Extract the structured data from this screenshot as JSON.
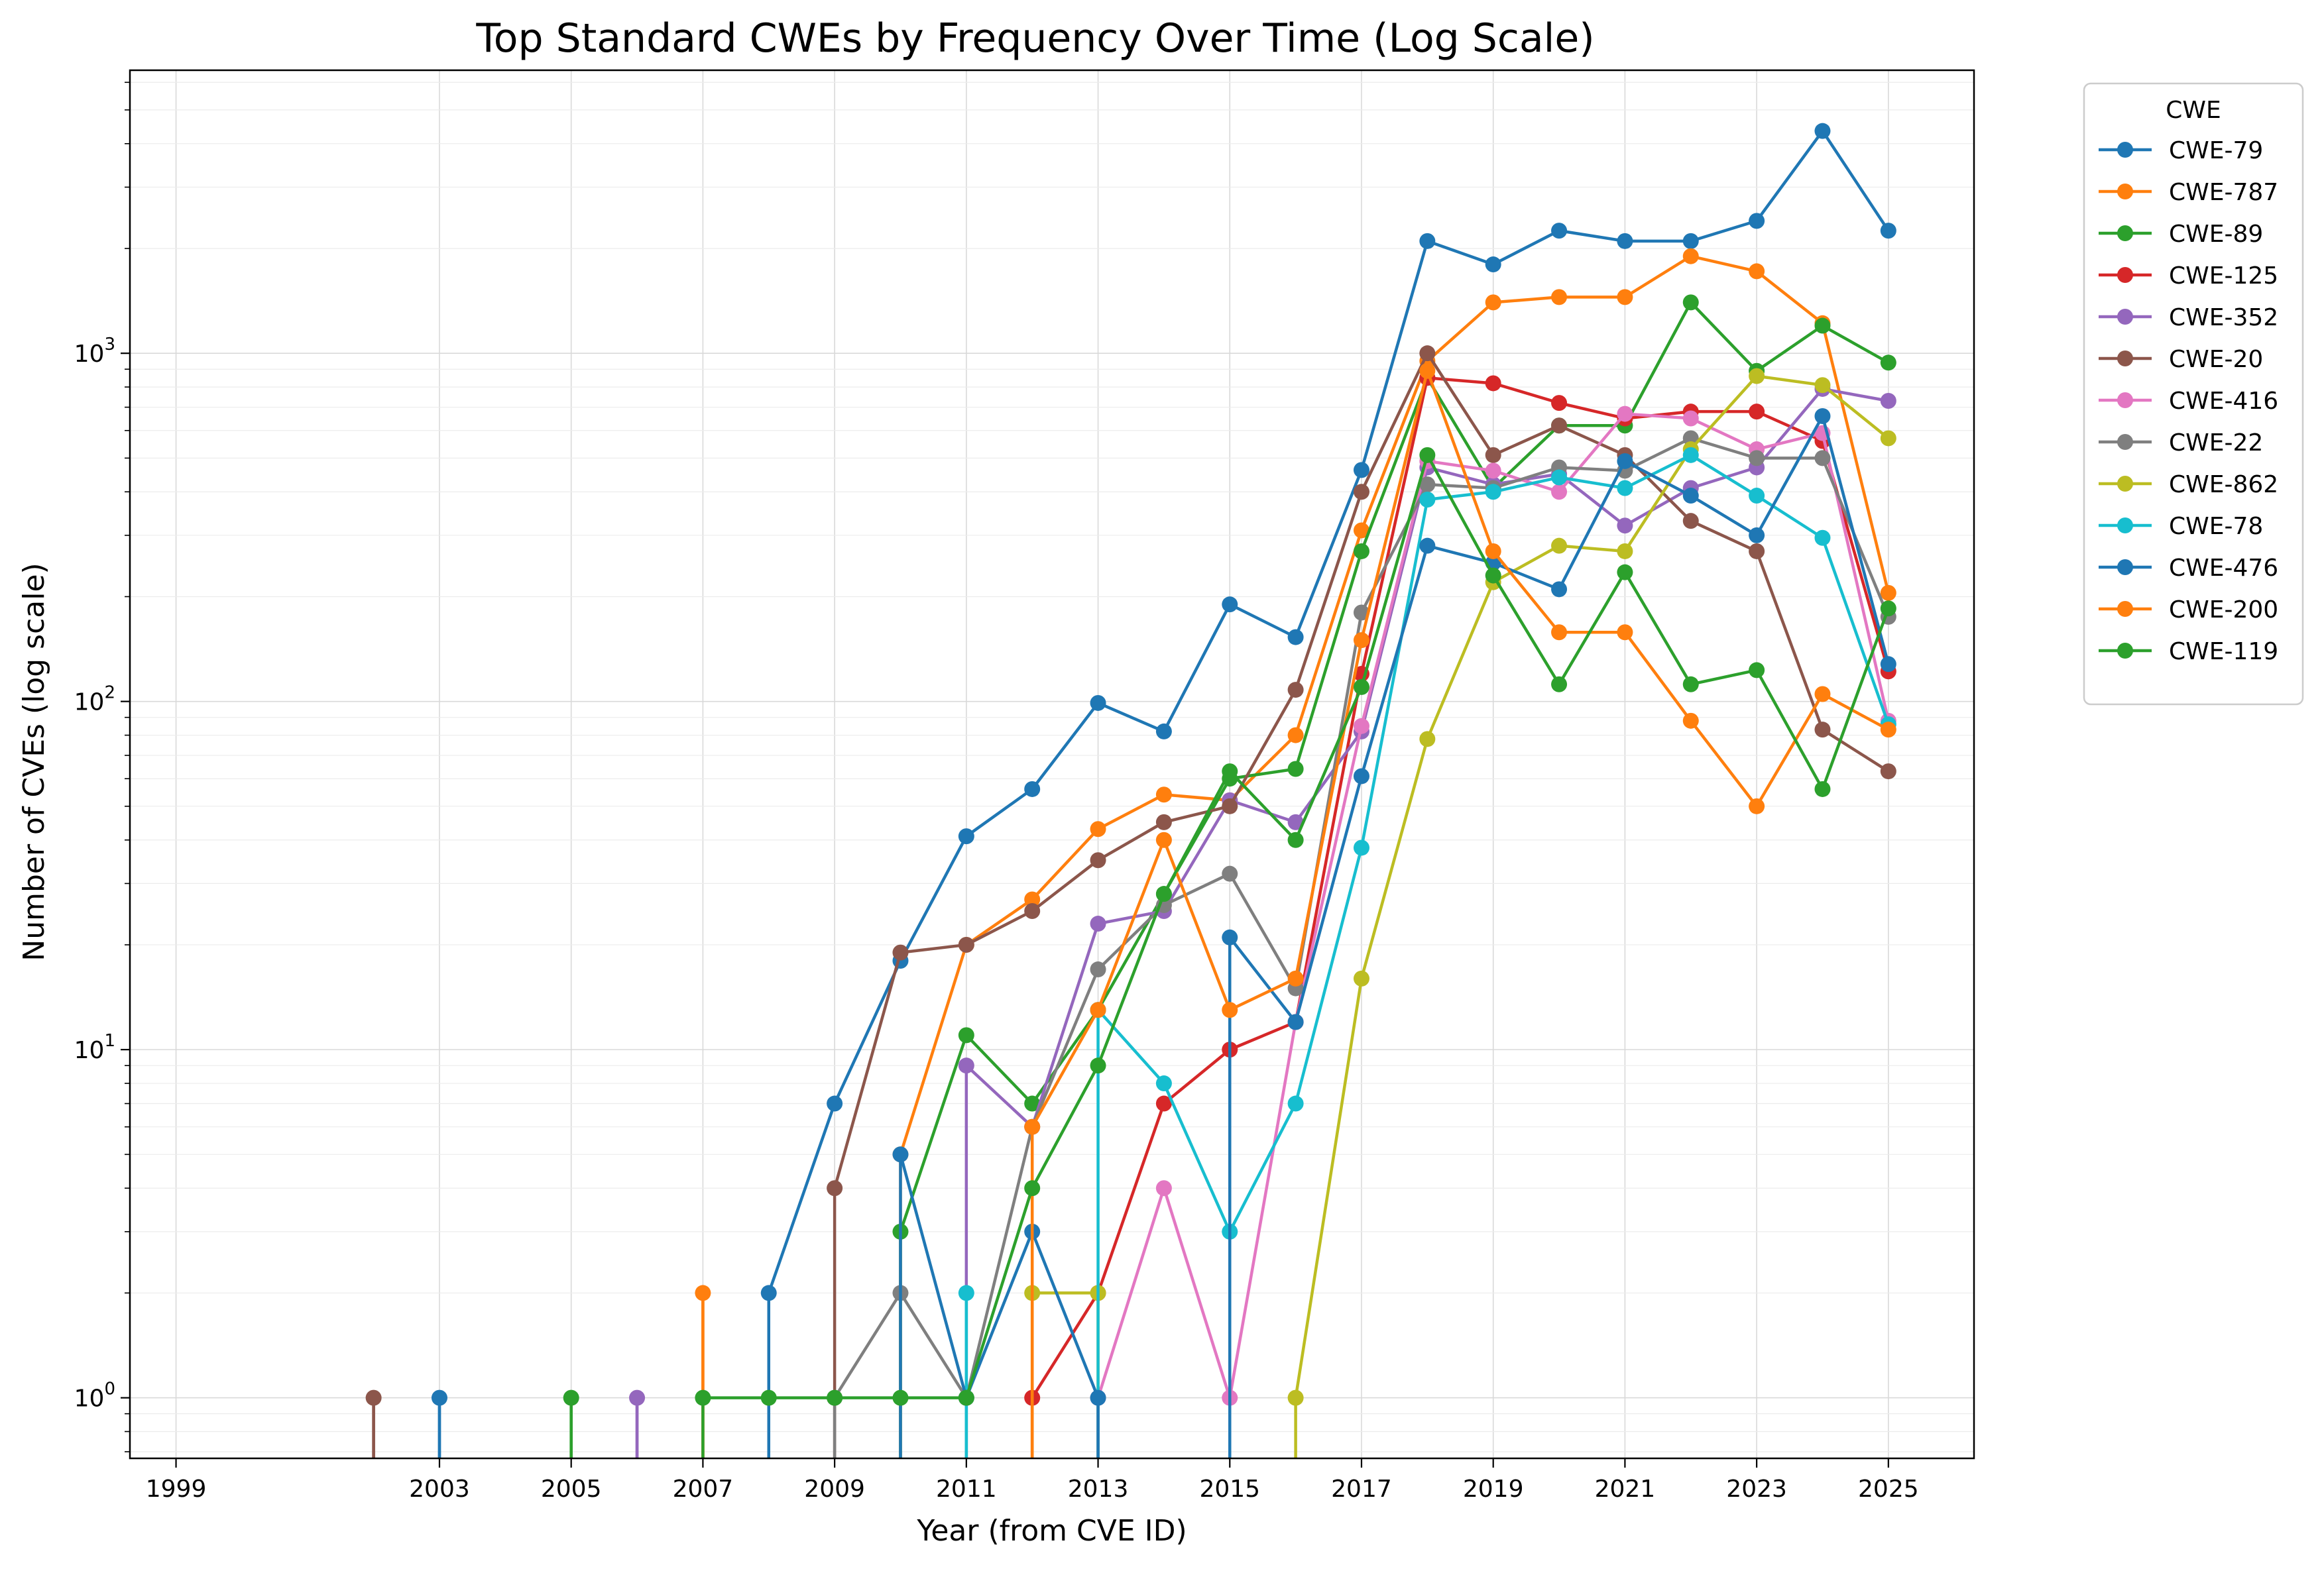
{
  "chart_data": {
    "type": "line",
    "title": "Top Standard CWEs by Frequency Over Time (Log Scale)",
    "xlabel": "Year (from CVE ID)",
    "ylabel": "Number of CVEs (log scale)",
    "yscale": "log",
    "xlim": [
      1998.3,
      2026.3
    ],
    "ylim": [
      0.67,
      6500
    ],
    "x_ticks": [
      1999,
      2003,
      2005,
      2007,
      2009,
      2011,
      2013,
      2015,
      2017,
      2019,
      2021,
      2023,
      2025
    ],
    "x_tick_labels": [
      "1999",
      "2003",
      "2005",
      "2007",
      "2009",
      "2011",
      "2013",
      "2015",
      "2017",
      "2019",
      "2021",
      "2023",
      "2025"
    ],
    "y_ticks": [
      1,
      10,
      100,
      1000
    ],
    "y_tick_labels": [
      {
        "base": "10",
        "exp": "0"
      },
      {
        "base": "10",
        "exp": "1"
      },
      {
        "base": "10",
        "exp": "2"
      },
      {
        "base": "10",
        "exp": "3"
      }
    ],
    "grid": true,
    "legend": {
      "title": "CWE",
      "placement": "outside-right"
    },
    "series": [
      {
        "name": "CWE-79",
        "color": "#1f77b4",
        "points": [
          [
            2008,
            2
          ],
          [
            2009,
            7
          ],
          [
            2010,
            18
          ],
          [
            2011,
            41
          ],
          [
            2012,
            56
          ],
          [
            2013,
            99
          ],
          [
            2014,
            82
          ],
          [
            2015,
            190
          ],
          [
            2016,
            153
          ],
          [
            2017,
            462
          ],
          [
            2018,
            2100
          ],
          [
            2019,
            1800
          ],
          [
            2020,
            2250
          ],
          [
            2021,
            2100
          ],
          [
            2022,
            2100
          ],
          [
            2023,
            2400
          ],
          [
            2024,
            4350
          ],
          [
            2025,
            2250
          ]
        ]
      },
      {
        "name": "CWE-787",
        "color": "#ff7f0e",
        "points": [
          [
            2010,
            5
          ],
          [
            2011,
            20
          ],
          [
            2012,
            27
          ],
          [
            2013,
            43
          ],
          [
            2014,
            54
          ],
          [
            2015,
            52
          ],
          [
            2016,
            80
          ],
          [
            2017,
            310
          ],
          [
            2018,
            950
          ],
          [
            2019,
            1400
          ],
          [
            2020,
            1450
          ],
          [
            2021,
            1450
          ],
          [
            2022,
            1900
          ],
          [
            2023,
            1720
          ],
          [
            2024,
            1220
          ],
          [
            2025,
            205
          ]
        ]
      },
      {
        "name": "CWE-89",
        "color": "#2ca02c",
        "points": [
          [
            2010,
            3
          ],
          [
            2011,
            11
          ],
          [
            2012,
            7
          ],
          [
            2013,
            13
          ],
          [
            2014,
            28
          ],
          [
            2015,
            60
          ],
          [
            2016,
            64
          ],
          [
            2017,
            270
          ],
          [
            2018,
            850
          ],
          [
            2019,
            410
          ],
          [
            2020,
            620
          ],
          [
            2021,
            620
          ],
          [
            2022,
            1400
          ],
          [
            2023,
            890
          ],
          [
            2024,
            1200
          ],
          [
            2025,
            940
          ]
        ]
      },
      {
        "name": "CWE-125",
        "color": "#d62728",
        "points": [
          [
            2012,
            1
          ],
          [
            2013,
            2
          ],
          [
            2014,
            7
          ],
          [
            2015,
            10
          ],
          [
            2016,
            12
          ],
          [
            2017,
            120
          ],
          [
            2018,
            850
          ],
          [
            2019,
            820
          ],
          [
            2020,
            720
          ],
          [
            2021,
            650
          ],
          [
            2022,
            680
          ],
          [
            2023,
            680
          ],
          [
            2024,
            560
          ],
          [
            2025,
            122
          ]
        ]
      },
      {
        "name": "CWE-352",
        "color": "#9467bd",
        "points": [
          [
            2006,
            1
          ],
          [
            2011,
            9
          ],
          [
            2012,
            6
          ],
          [
            2013,
            23
          ],
          [
            2014,
            25
          ],
          [
            2015,
            52
          ],
          [
            2016,
            45
          ],
          [
            2017,
            82
          ],
          [
            2018,
            470
          ],
          [
            2019,
            420
          ],
          [
            2020,
            450
          ],
          [
            2021,
            320
          ],
          [
            2022,
            410
          ],
          [
            2023,
            470
          ],
          [
            2024,
            790
          ],
          [
            2025,
            730
          ]
        ]
      },
      {
        "name": "CWE-20",
        "color": "#8c564b",
        "points": [
          [
            2002,
            1
          ],
          [
            2009,
            4
          ],
          [
            2010,
            19
          ],
          [
            2011,
            20
          ],
          [
            2012,
            25
          ],
          [
            2013,
            35
          ],
          [
            2014,
            45
          ],
          [
            2015,
            50
          ],
          [
            2016,
            108
          ],
          [
            2017,
            400
          ],
          [
            2018,
            1000
          ],
          [
            2019,
            510
          ],
          [
            2020,
            620
          ],
          [
            2021,
            510
          ],
          [
            2022,
            330
          ],
          [
            2023,
            270
          ],
          [
            2024,
            83
          ],
          [
            2025,
            63
          ]
        ]
      },
      {
        "name": "CWE-416",
        "color": "#e377c2",
        "points": [
          [
            2013,
            1
          ],
          [
            2014,
            4
          ],
          [
            2015,
            1
          ],
          [
            2016,
            12
          ],
          [
            2017,
            85
          ],
          [
            2018,
            490
          ],
          [
            2019,
            460
          ],
          [
            2020,
            400
          ],
          [
            2021,
            670
          ],
          [
            2022,
            650
          ],
          [
            2023,
            530
          ],
          [
            2024,
            590
          ],
          [
            2025,
            88
          ]
        ]
      },
      {
        "name": "CWE-22",
        "color": "#7f7f7f",
        "points": [
          [
            2009,
            1
          ],
          [
            2010,
            2
          ],
          [
            2011,
            1
          ],
          [
            2012,
            6
          ],
          [
            2013,
            17
          ],
          [
            2014,
            26
          ],
          [
            2015,
            32
          ],
          [
            2016,
            15
          ],
          [
            2017,
            180
          ],
          [
            2018,
            420
          ],
          [
            2019,
            410
          ],
          [
            2020,
            470
          ],
          [
            2021,
            460
          ],
          [
            2022,
            570
          ],
          [
            2023,
            500
          ],
          [
            2024,
            500
          ],
          [
            2025,
            175
          ]
        ]
      },
      {
        "name": "CWE-862",
        "color": "#bcbd22",
        "points": [
          [
            2012,
            2
          ],
          [
            2013,
            2
          ],
          [
            2016,
            1
          ],
          [
            2017,
            16
          ],
          [
            2018,
            78
          ],
          [
            2019,
            220
          ],
          [
            2020,
            280
          ],
          [
            2021,
            270
          ],
          [
            2022,
            530
          ],
          [
            2023,
            860
          ],
          [
            2024,
            810
          ],
          [
            2025,
            570
          ]
        ]
      },
      {
        "name": "CWE-78",
        "color": "#17becf",
        "points": [
          [
            2011,
            2
          ],
          [
            2013,
            13
          ],
          [
            2014,
            8
          ],
          [
            2015,
            3
          ],
          [
            2016,
            7
          ],
          [
            2017,
            38
          ],
          [
            2018,
            380
          ],
          [
            2019,
            400
          ],
          [
            2020,
            440
          ],
          [
            2021,
            410
          ],
          [
            2022,
            510
          ],
          [
            2023,
            390
          ],
          [
            2024,
            295
          ],
          [
            2025,
            86
          ]
        ]
      },
      {
        "name": "CWE-476",
        "color": "#1f77b4",
        "points": [
          [
            2003,
            1
          ],
          [
            2010,
            5
          ],
          [
            2011,
            1
          ],
          [
            2012,
            3
          ],
          [
            2013,
            1
          ],
          [
            2015,
            21
          ],
          [
            2016,
            12
          ],
          [
            2017,
            61
          ],
          [
            2018,
            280
          ],
          [
            2019,
            250
          ],
          [
            2020,
            210
          ],
          [
            2021,
            490
          ],
          [
            2022,
            390
          ],
          [
            2023,
            300
          ],
          [
            2024,
            660
          ],
          [
            2025,
            128
          ]
        ]
      },
      {
        "name": "CWE-200",
        "color": "#ff7f0e",
        "points": [
          [
            2007,
            2
          ],
          [
            2012,
            6
          ],
          [
            2013,
            13
          ],
          [
            2014,
            40
          ],
          [
            2015,
            13
          ],
          [
            2016,
            16
          ],
          [
            2017,
            150
          ],
          [
            2018,
            890
          ],
          [
            2019,
            270
          ],
          [
            2020,
            158
          ],
          [
            2021,
            158
          ],
          [
            2022,
            88
          ],
          [
            2023,
            50
          ],
          [
            2024,
            105
          ],
          [
            2025,
            83
          ]
        ]
      },
      {
        "name": "CWE-119",
        "color": "#2ca02c",
        "points": [
          [
            2005,
            1
          ],
          [
            2007,
            1
          ],
          [
            2008,
            1
          ],
          [
            2009,
            1
          ],
          [
            2010,
            1
          ],
          [
            2011,
            1
          ],
          [
            2012,
            4
          ],
          [
            2013,
            9
          ],
          [
            2014,
            28
          ],
          [
            2015,
            63
          ],
          [
            2016,
            40
          ],
          [
            2017,
            110
          ],
          [
            2018,
            510
          ],
          [
            2019,
            230
          ],
          [
            2020,
            112
          ],
          [
            2021,
            235
          ],
          [
            2022,
            112
          ],
          [
            2023,
            123
          ],
          [
            2024,
            56
          ],
          [
            2025,
            185
          ]
        ]
      }
    ]
  }
}
